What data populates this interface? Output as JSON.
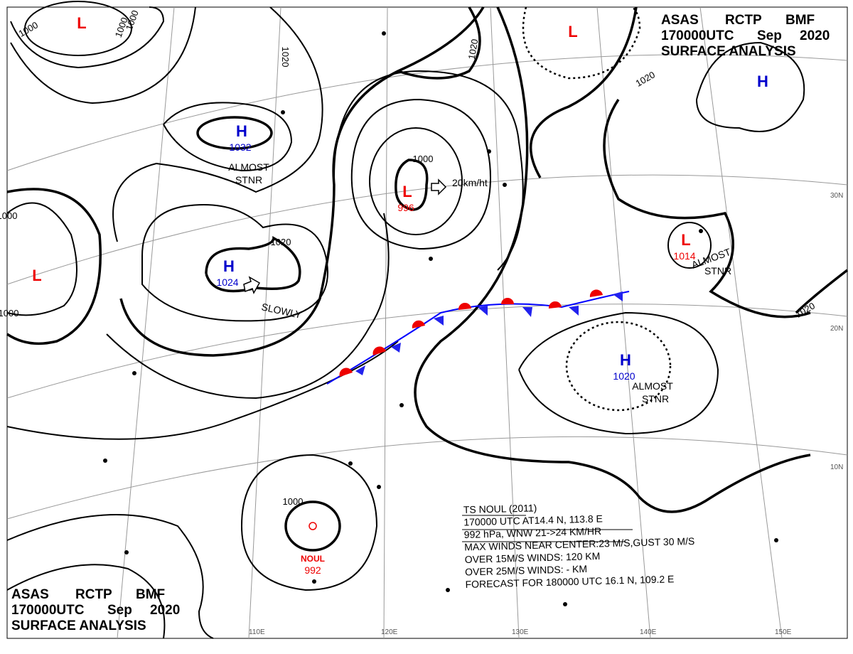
{
  "header": {
    "agency": "ASAS",
    "center": "RCTP",
    "code": "BMF",
    "time": "170000UTC",
    "month": "Sep",
    "year": "2020",
    "title": "SURFACE ANALYSIS"
  },
  "centers": [
    {
      "symbol": "L"
    },
    {
      "symbol": "H",
      "pressure": "1032"
    },
    {
      "symbol": "L",
      "pressure": "996"
    },
    {
      "symbol": "L"
    },
    {
      "symbol": "H"
    },
    {
      "symbol": "L",
      "pressure": "1014"
    },
    {
      "symbol": "H",
      "pressure": "1024"
    },
    {
      "symbol": "L"
    },
    {
      "symbol": "H",
      "pressure": "1020"
    },
    {
      "symbol": "NOUL",
      "pressure": "992"
    }
  ],
  "isobar_labels": [
    "1000",
    "1000",
    "1020",
    "1020",
    "1000",
    "1000",
    "1020",
    "1020",
    "1000",
    "1020",
    "1000",
    "1000"
  ],
  "annotations": {
    "almost": "ALMOST",
    "stnr": "STNR",
    "slowly": "SLOWLY",
    "speed": "20km/ht"
  },
  "latitudes": [
    "30N",
    "20N",
    "10N"
  ],
  "longitudes": [
    "110E",
    "120E",
    "130E",
    "140E",
    "150E"
  ],
  "storm": [
    "TS  NOUL  (2011)",
    "170000 UTC  AT14.4 N, 113.8 E",
    "992 hPa, WNW  21->24 KM/HR",
    "MAX WINDS NEAR CENTER:23 M/S,GUST 30 M/S",
    "OVER 15M/S WINDS: 120 KM",
    "OVER 25M/S WINDS: - KM",
    "FORECAST FOR 180000 UTC 16.1 N, 109.2 E"
  ]
}
